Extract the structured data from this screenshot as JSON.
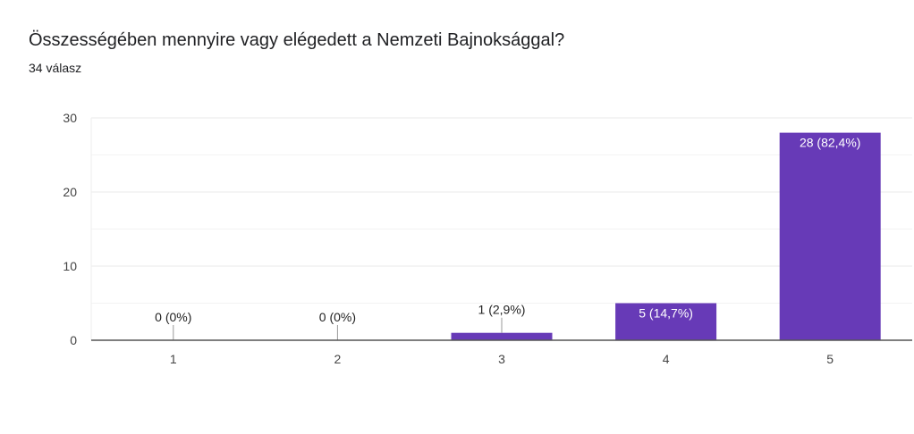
{
  "header": {
    "title": "Összességében mennyire vagy elégedett a Nemzeti Bajnoksággal?",
    "responses": "34 válasz"
  },
  "chart_data": {
    "type": "bar",
    "categories": [
      "1",
      "2",
      "3",
      "4",
      "5"
    ],
    "values": [
      0,
      0,
      1,
      5,
      28
    ],
    "data_labels": [
      "0 (0%)",
      "0 (0%)",
      "1 (2,9%)",
      "5 (14,7%)",
      "28 (82,4%)"
    ],
    "yticks": [
      0,
      10,
      20,
      30
    ],
    "ylim": [
      0,
      30
    ],
    "grid": true,
    "bar_color": "#673ab7",
    "xlabel": "",
    "ylabel": "",
    "title": ""
  }
}
